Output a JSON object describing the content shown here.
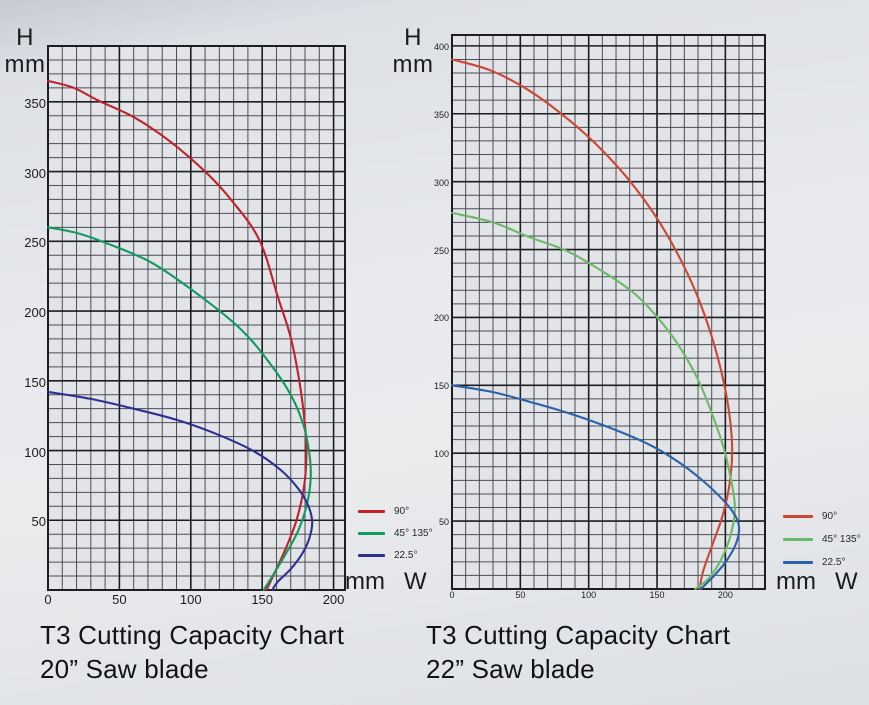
{
  "chart_data": [
    {
      "type": "line",
      "title": "T3 Cutting Capacity Chart",
      "subtitle": "20” Saw blade",
      "y_axis_letter": "H",
      "y_axis_unit": "mm",
      "x_axis_unit": "mm",
      "x_axis_letter": "W",
      "xlabel": "W (mm)",
      "ylabel": "H (mm)",
      "xlim": [
        0,
        208
      ],
      "ylim": [
        0,
        390
      ],
      "x_ticks": [
        0,
        50,
        100,
        150,
        200
      ],
      "y_ticks": [
        50,
        100,
        150,
        200,
        250,
        300,
        350
      ],
      "minor_grid_step": 10,
      "major_grid_step": 50,
      "grid": true,
      "legend_position": "right-of-plot-lower",
      "series": [
        {
          "name": "90°",
          "color": "#c2202b",
          "points": [
            [
              0,
              365
            ],
            [
              18,
              360
            ],
            [
              35,
              351
            ],
            [
              60,
              339
            ],
            [
              85,
              322
            ],
            [
              110,
              300
            ],
            [
              128,
              280
            ],
            [
              148,
              251
            ],
            [
              161,
              210
            ],
            [
              170,
              181
            ],
            [
              176,
              150
            ],
            [
              180,
              118
            ],
            [
              181,
              96
            ],
            [
              179,
              72
            ],
            [
              174,
              50
            ],
            [
              167,
              31
            ],
            [
              159,
              13
            ],
            [
              153,
              0
            ]
          ]
        },
        {
          "name": "45° 135°",
          "color": "#0f9b60",
          "points": [
            [
              0,
              260
            ],
            [
              20,
              256
            ],
            [
              40,
              249
            ],
            [
              72,
              235
            ],
            [
              105,
              212
            ],
            [
              135,
              187
            ],
            [
              155,
              163
            ],
            [
              170,
              140
            ],
            [
              179,
              118
            ],
            [
              183,
              98
            ],
            [
              184,
              80
            ],
            [
              181,
              60
            ],
            [
              175,
              42
            ],
            [
              166,
              25
            ],
            [
              156,
              8
            ],
            [
              151,
              0
            ]
          ]
        },
        {
          "name": "22.5°",
          "color": "#2e3192",
          "points": [
            [
              0,
              142
            ],
            [
              30,
              137
            ],
            [
              60,
              130
            ],
            [
              90,
              122
            ],
            [
              120,
              111
            ],
            [
              145,
              99
            ],
            [
              163,
              86
            ],
            [
              175,
              73
            ],
            [
              182,
              61
            ],
            [
              185,
              49
            ],
            [
              183,
              37
            ],
            [
              178,
              26
            ],
            [
              170,
              15
            ],
            [
              161,
              6
            ],
            [
              157,
              0
            ]
          ]
        }
      ]
    },
    {
      "type": "line",
      "title": "T3 Cutting Capacity Chart",
      "subtitle": "22” Saw blade",
      "y_axis_letter": "H",
      "y_axis_unit": "mm",
      "x_axis_unit": "mm",
      "x_axis_letter": "W",
      "xlabel": "W (mm)",
      "ylabel": "H (mm)",
      "xlim": [
        0,
        229
      ],
      "ylim": [
        0,
        408
      ],
      "x_ticks": [
        0,
        50,
        100,
        150,
        200
      ],
      "y_ticks": [
        50,
        100,
        150,
        200,
        250,
        300,
        350,
        400
      ],
      "minor_grid_step": 10,
      "major_grid_step": 50,
      "grid": true,
      "legend_position": "right-of-plot-lower",
      "series": [
        {
          "name": "90°",
          "color": "#cf4634",
          "points": [
            [
              0,
              390
            ],
            [
              28,
              382
            ],
            [
              55,
              368
            ],
            [
              80,
              350
            ],
            [
              105,
              328
            ],
            [
              128,
              303
            ],
            [
              148,
              276
            ],
            [
              165,
              247
            ],
            [
              179,
              217
            ],
            [
              190,
              186
            ],
            [
              198,
              156
            ],
            [
              203,
              128
            ],
            [
              205,
              102
            ],
            [
              203,
              77
            ],
            [
              198,
              54
            ],
            [
              191,
              34
            ],
            [
              184,
              14
            ],
            [
              181,
              0
            ]
          ]
        },
        {
          "name": "45° 135°",
          "color": "#6cb96a",
          "points": [
            [
              0,
              277
            ],
            [
              30,
              270
            ],
            [
              57,
              259
            ],
            [
              84,
              249
            ],
            [
              110,
              234
            ],
            [
              133,
              218
            ],
            [
              152,
              198
            ],
            [
              168,
              176
            ],
            [
              181,
              152
            ],
            [
              191,
              127
            ],
            [
              199,
              103
            ],
            [
              204,
              81
            ],
            [
              207,
              60
            ],
            [
              204,
              40
            ],
            [
              197,
              22
            ],
            [
              188,
              8
            ],
            [
              178,
              0
            ]
          ]
        },
        {
          "name": "22.5°",
          "color": "#2a61ab",
          "points": [
            [
              0,
              150
            ],
            [
              30,
              145
            ],
            [
              60,
              137
            ],
            [
              90,
              128
            ],
            [
              120,
              117
            ],
            [
              145,
              106
            ],
            [
              165,
              94
            ],
            [
              182,
              81
            ],
            [
              196,
              68
            ],
            [
              206,
              56
            ],
            [
              210,
              46
            ],
            [
              208,
              34
            ],
            [
              201,
              21
            ],
            [
              191,
              9
            ],
            [
              182,
              0
            ]
          ]
        }
      ]
    }
  ]
}
